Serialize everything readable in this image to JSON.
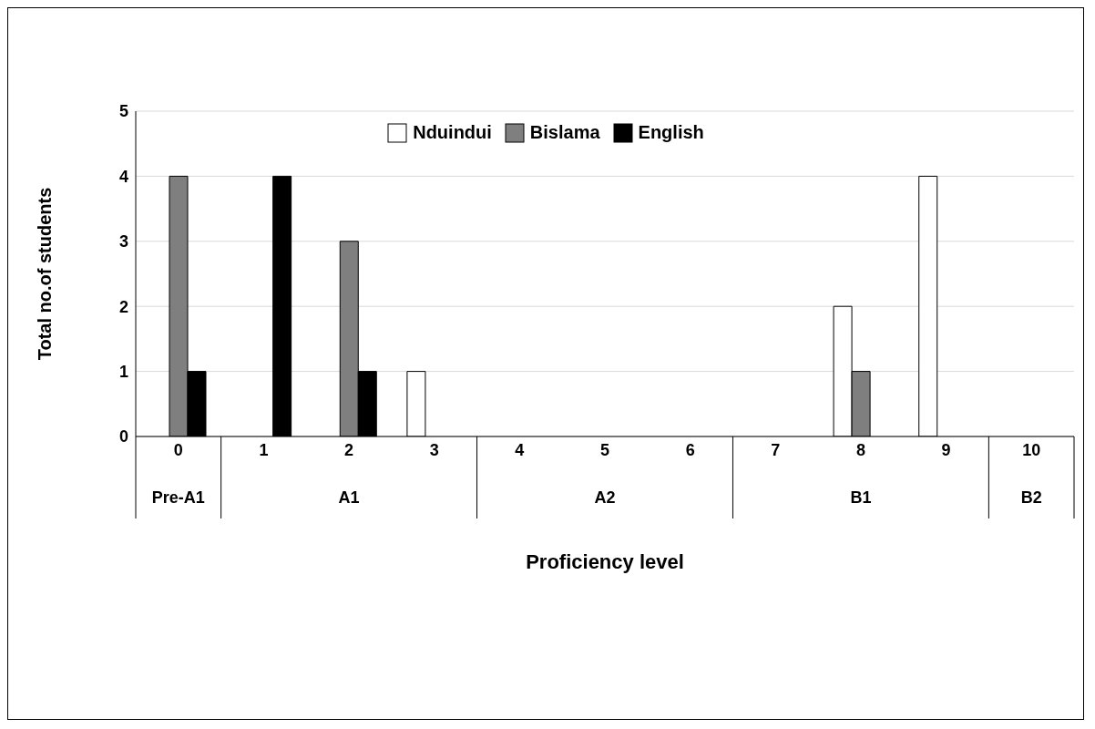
{
  "chart_data": {
    "type": "bar",
    "xlabel": "Proficiency level",
    "ylabel": "Total no.of students",
    "categories": [
      "0",
      "1",
      "2",
      "3",
      "4",
      "5",
      "6",
      "7",
      "8",
      "9",
      "10"
    ],
    "series": [
      {
        "name": "Nduindui",
        "color": "#ffffff",
        "values": [
          0,
          0,
          0,
          1,
          0,
          0,
          0,
          0,
          2,
          4,
          0
        ]
      },
      {
        "name": "Bislama",
        "color": "#7f7f7f",
        "values": [
          4,
          0,
          3,
          0,
          0,
          0,
          0,
          0,
          1,
          0,
          0
        ]
      },
      {
        "name": "English",
        "color": "#000000",
        "values": [
          1,
          4,
          1,
          0,
          0,
          0,
          0,
          0,
          0,
          0,
          0
        ]
      }
    ],
    "annotations": [
      "Pre-A1",
      "A1",
      "A2",
      "B1",
      "B2"
    ],
    "ylim": [
      0,
      5
    ],
    "yticks": [
      0,
      1,
      2,
      3,
      4,
      5
    ],
    "grid": "y",
    "legend": "top"
  }
}
